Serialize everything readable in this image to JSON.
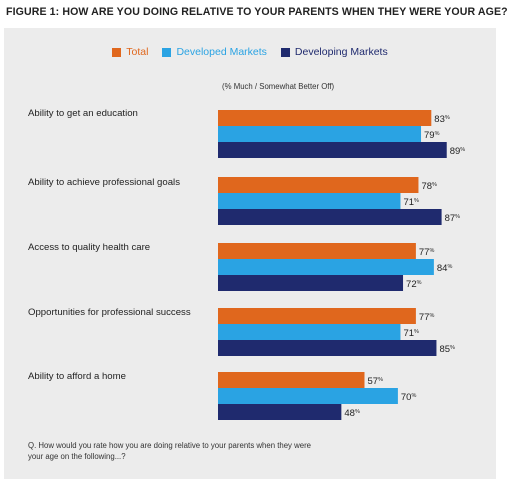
{
  "title": "FIGURE 1: HOW ARE YOU DOING RELATIVE TO YOUR PARENTS WHEN THEY WERE YOUR AGE?",
  "subtitle": "(% Much / Somewhat Better Off)",
  "question": "Q. How would you rate how you are doing relative to your parents when they were your age on the following...?",
  "colors": {
    "total": "#e0671d",
    "developed": "#2aa3e3",
    "developing": "#1f2a6e"
  },
  "chart_data": {
    "type": "bar",
    "orientation": "horizontal",
    "categories": [
      "Ability to get an education",
      "Ability to achieve professional goals",
      "Access to quality health care",
      "Opportunities for professional success",
      "Ability to afford a home"
    ],
    "series": [
      {
        "name": "Total",
        "values": [
          83,
          78,
          77,
          77,
          57
        ]
      },
      {
        "name": "Developed Markets",
        "values": [
          79,
          71,
          84,
          71,
          70
        ]
      },
      {
        "name": "Developing Markets",
        "values": [
          89,
          87,
          72,
          85,
          48
        ]
      }
    ],
    "value_suffix": "%",
    "legend_position": "top-center"
  }
}
